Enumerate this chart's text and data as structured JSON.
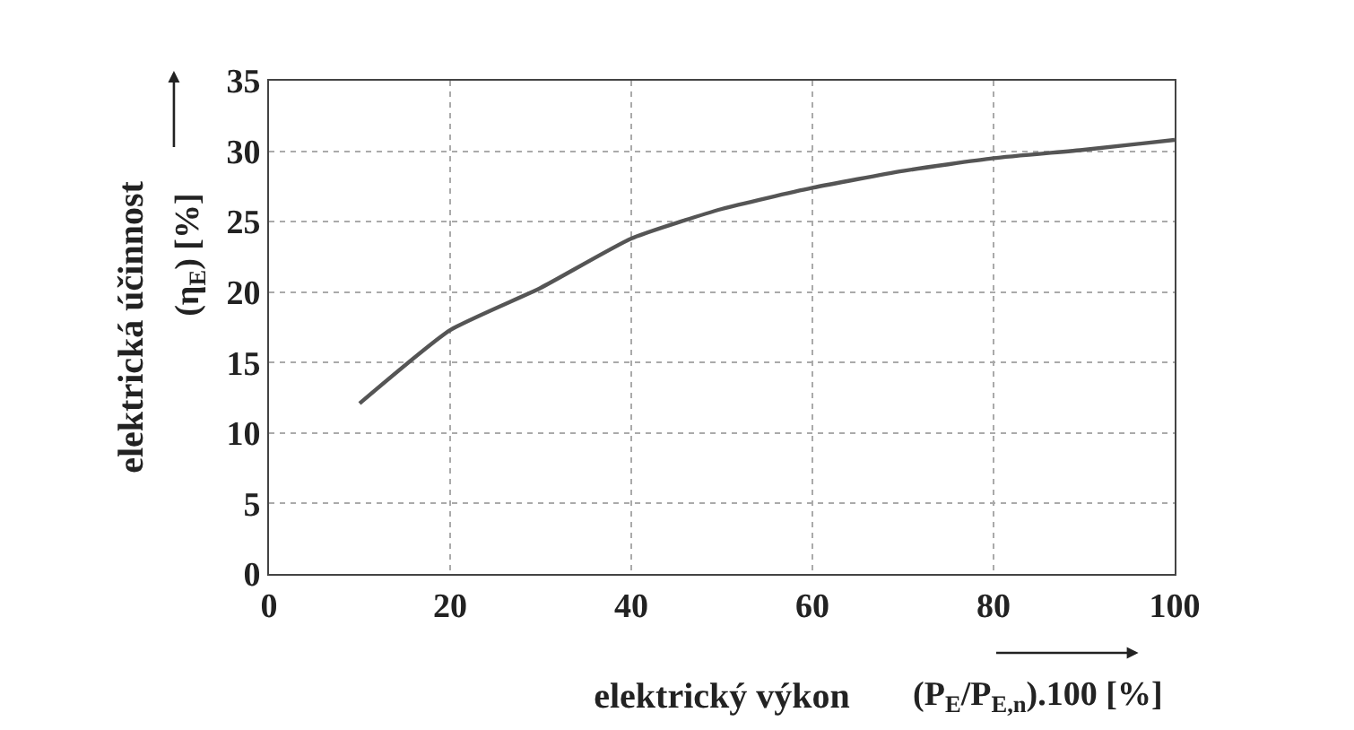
{
  "chart_data": {
    "type": "line",
    "xlabel": "elektrický výkon",
    "ylabel": "elektrická účinnost",
    "annotations": [
      "(η$_{E}$) [%]",
      "(P$_{E}$/P$_{E,n}$).100 [%]"
    ],
    "x": [
      10,
      20,
      30,
      40,
      50,
      60,
      70,
      80,
      90,
      100
    ],
    "series": [
      {
        "color": "#555555",
        "values": [
          12.1,
          17.3,
          20.3,
          23.8,
          25.9,
          27.4,
          28.6,
          29.5,
          30.1,
          30.8
        ]
      }
    ],
    "xlim": [
      0,
      100
    ],
    "xticks": [
      0,
      20,
      40,
      60,
      80,
      100
    ],
    "ylim": [
      0,
      35
    ],
    "yticks": [
      0,
      5,
      10,
      15,
      20,
      25,
      30,
      35
    ],
    "grid": true,
    "marker": "none",
    "line_style": "solid"
  }
}
